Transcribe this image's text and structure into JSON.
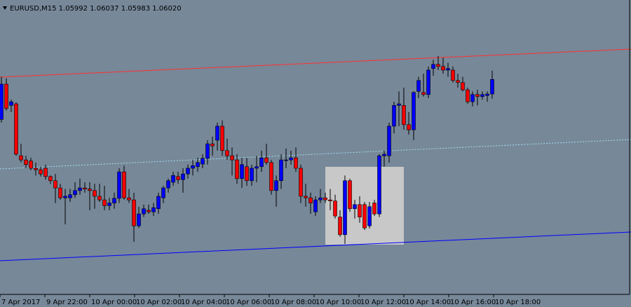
{
  "chart_data": {
    "type": "candlestick",
    "title": "EURUSD,M15  1.05992 1.06037 1.05983 1.06020",
    "ylim": [
      1.05606,
      1.06173
    ],
    "bull_color": "#0000ff",
    "bear_color": "#ff0000",
    "wick_color": "#000000",
    "x_labels": [
      "7 Apr 2017",
      "9 Apr 22:00",
      "10 Apr 00:00",
      "10 Apr 02:00",
      "10 Apr 04:00",
      "10 Apr 06:00",
      "10 Apr 08:00",
      "10 Apr 10:00",
      "10 Apr 12:00",
      "10 Apr 14:00",
      "10 Apr 16:00",
      "10 Apr 18:00"
    ],
    "open": [
      1.05943,
      1.06011,
      1.0597,
      1.05973,
      1.05873,
      1.05865,
      1.05863,
      1.05849,
      1.05846,
      1.05849,
      1.05833,
      1.05825,
      1.05811,
      1.05792,
      1.05792,
      1.05798,
      1.05806,
      1.05811,
      1.05809,
      1.05806,
      1.05795,
      1.05788,
      1.05777,
      1.05782,
      1.05791,
      1.05842,
      1.05792,
      1.05788,
      1.05738,
      1.05761,
      1.05768,
      1.05765,
      1.05771,
      1.05792,
      1.05811,
      1.05822,
      1.05833,
      1.05827,
      1.05838,
      1.05849,
      1.05852,
      1.05857,
      1.05868,
      1.05896,
      1.05903,
      1.0593,
      1.05883,
      1.05873,
      1.05865,
      1.05829,
      1.05852,
      1.05825,
      1.05849,
      1.05852,
      1.05869,
      1.0586,
      1.05806,
      1.05825,
      1.05865,
      1.05865,
      1.05869,
      1.05849,
      1.05795,
      1.05792,
      1.05765,
      1.05788,
      1.05792,
      1.05788,
      1.05786,
      1.05755,
      1.05721,
      1.05825,
      1.05771,
      1.05779,
      1.05779,
      1.05738,
      1.05782,
      1.05761,
      1.05873,
      1.05873,
      1.0593,
      1.0597,
      1.0597,
      1.05933,
      1.05923,
      1.05997,
      1.05995,
      1.05991,
      1.06041,
      1.06049,
      1.06045,
      1.06038,
      1.06038,
      1.06018,
      1.06014,
      1.06,
      1.05977,
      1.05991,
      1.05987,
      1.05989,
      1.05992
    ],
    "high": [
      1.06025,
      1.06022,
      1.05981,
      1.05976,
      1.05896,
      1.05873,
      1.05869,
      1.0586,
      1.05852,
      1.05856,
      1.05835,
      1.05838,
      1.05819,
      1.05809,
      1.05809,
      1.05822,
      1.05829,
      1.05822,
      1.05822,
      1.05819,
      1.05819,
      1.05815,
      1.05792,
      1.05802,
      1.05849,
      1.05854,
      1.05809,
      1.05802,
      1.05775,
      1.05779,
      1.05779,
      1.05782,
      1.05802,
      1.05815,
      1.05829,
      1.05842,
      1.05842,
      1.05849,
      1.05856,
      1.05865,
      1.05869,
      1.05876,
      1.05903,
      1.0591,
      1.05937,
      1.05941,
      1.05906,
      1.05889,
      1.05876,
      1.05869,
      1.05869,
      1.05856,
      1.05873,
      1.05883,
      1.05896,
      1.05865,
      1.05835,
      1.05876,
      1.05887,
      1.05883,
      1.05889,
      1.05856,
      1.05819,
      1.05802,
      1.05795,
      1.05809,
      1.05802,
      1.05809,
      1.05798,
      1.05768,
      1.05835,
      1.05829,
      1.05788,
      1.05795,
      1.05784,
      1.05784,
      1.05788,
      1.05876,
      1.05883,
      1.05937,
      1.05977,
      1.05997,
      1.06004,
      1.05957,
      1.05997,
      1.06025,
      1.06031,
      1.06045,
      1.06058,
      1.06065,
      1.06062,
      1.06052,
      1.06045,
      1.06031,
      1.06025,
      1.06004,
      1.05997,
      1.06,
      1.05997,
      1.05997,
      1.06037
    ],
    "low": [
      1.05937,
      1.0596,
      1.05957,
      1.05873,
      1.0586,
      1.05849,
      1.05845,
      1.05835,
      1.05833,
      1.05827,
      1.05819,
      1.05782,
      1.05788,
      1.05741,
      1.05784,
      1.05792,
      1.05798,
      1.05802,
      1.05768,
      1.05771,
      1.05784,
      1.05768,
      1.05768,
      1.05771,
      1.05782,
      1.05788,
      1.05782,
      1.05707,
      1.05734,
      1.05755,
      1.05761,
      1.05757,
      1.05761,
      1.05782,
      1.05802,
      1.05815,
      1.05819,
      1.05802,
      1.05829,
      1.05835,
      1.05842,
      1.05849,
      1.05856,
      1.05873,
      1.05883,
      1.05873,
      1.05865,
      1.05835,
      1.05819,
      1.05811,
      1.05815,
      1.05815,
      1.05822,
      1.05842,
      1.05856,
      1.05798,
      1.05775,
      1.05809,
      1.05849,
      1.05856,
      1.05842,
      1.05782,
      1.05775,
      1.05761,
      1.05757,
      1.05782,
      1.05782,
      1.05768,
      1.05752,
      1.05717,
      1.05703,
      1.05765,
      1.05752,
      1.05744,
      1.0573,
      1.05733,
      1.05757,
      1.05755,
      1.05852,
      1.0586,
      1.05916,
      1.0593,
      1.05923,
      1.05914,
      1.05903,
      1.05984,
      1.05987,
      1.05984,
      1.06027,
      1.06038,
      1.06031,
      1.06025,
      1.06014,
      1.06004,
      1.05997,
      1.05973,
      1.05968,
      1.0597,
      1.05981,
      1.05977,
      1.05983
    ],
    "close": [
      1.06011,
      1.05964,
      1.05977,
      1.05876,
      1.05865,
      1.05856,
      1.05849,
      1.05846,
      1.05838,
      1.05833,
      1.05825,
      1.05811,
      1.05792,
      1.05795,
      1.05798,
      1.05806,
      1.05811,
      1.05809,
      1.05806,
      1.05795,
      1.05788,
      1.05777,
      1.05782,
      1.05791,
      1.05842,
      1.05792,
      1.05788,
      1.05738,
      1.05761,
      1.05771,
      1.05765,
      1.05773,
      1.05795,
      1.05811,
      1.05825,
      1.05835,
      1.05827,
      1.05838,
      1.05849,
      1.05854,
      1.0586,
      1.05868,
      1.05896,
      1.05892,
      1.0593,
      1.05883,
      1.05873,
      1.05865,
      1.05829,
      1.05856,
      1.05825,
      1.05849,
      1.05852,
      1.05869,
      1.0586,
      1.05806,
      1.05825,
      1.05865,
      1.05865,
      1.05869,
      1.05849,
      1.05795,
      1.05792,
      1.05782,
      1.05788,
      1.05792,
      1.05788,
      1.05786,
      1.05757,
      1.05721,
      1.05825,
      1.05771,
      1.05779,
      1.05755,
      1.05734,
      1.05775,
      1.05761,
      1.05873,
      1.05876,
      1.0593,
      1.0597,
      1.05973,
      1.05933,
      1.05923,
      1.05995,
      1.06018,
      1.05991,
      1.06038,
      1.06049,
      1.06045,
      1.06038,
      1.06041,
      1.06018,
      1.06014,
      1.06,
      1.05977,
      1.05991,
      1.05987,
      1.05991,
      1.05992,
      1.0602
    ]
  }
}
